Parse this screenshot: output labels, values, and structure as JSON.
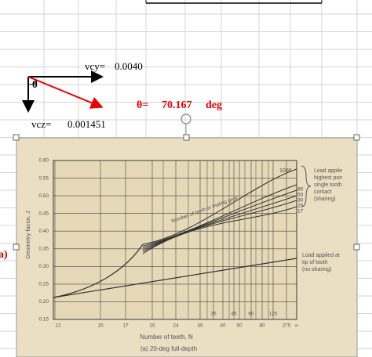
{
  "sheet": {
    "vcy_label": "vcy=",
    "vcy_value": "0.0040",
    "vcz_label": "vcz=",
    "vcz_value": "0.001451",
    "theta_symbol": "θ",
    "theta_label": "θ=",
    "theta_value": "70.167",
    "theta_unit": "deg",
    "side_label": "a)"
  },
  "figure": {
    "y_axis_label": "Geometry factor, J",
    "x_axis_label": "Number of teeth, N",
    "caption": "(a) 20-deg full-depth",
    "yticks": [
      "0.60",
      "0.55",
      "0.50",
      "0.45",
      "0.40",
      "0.35",
      "0.30",
      "0.25",
      "0.20",
      "0.15"
    ],
    "xticks": [
      "12",
      "15",
      "17",
      "20",
      "24",
      "30",
      "40",
      "50",
      "80",
      "275",
      "∞"
    ],
    "inner_xticks": [
      "35",
      "45",
      "60",
      "125"
    ],
    "curve_label": "Number of teeth in mating gear",
    "top_curve": "1000",
    "mating_teeth": [
      "85",
      "50",
      "30",
      "25",
      "17"
    ],
    "legend_upper": [
      "Load applie",
      "highest poir",
      "single tooth",
      "contact",
      "(sharing)"
    ],
    "legend_lower": [
      "Load applied at",
      "tip of tooth",
      "(no sharing)"
    ]
  }
}
